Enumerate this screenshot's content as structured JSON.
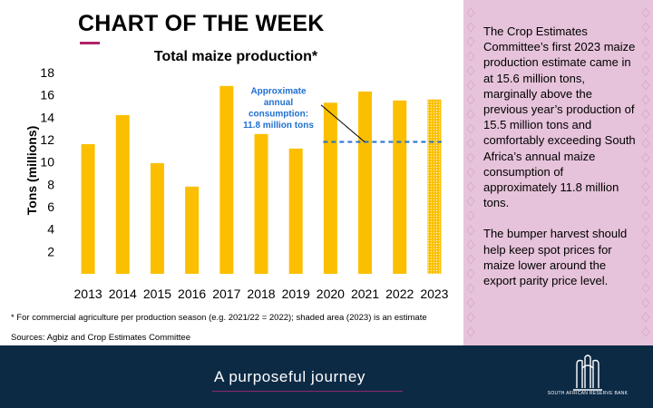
{
  "header": {
    "title": "CHART OF THE WEEK"
  },
  "chart_data": {
    "type": "bar",
    "title": "Total maize production*",
    "ylabel": "Tons (millions)",
    "xlabel": "",
    "ylim": [
      0,
      18
    ],
    "yticks": [
      2,
      4,
      6,
      8,
      10,
      12,
      14,
      16,
      18
    ],
    "categories": [
      "2013",
      "2014",
      "2015",
      "2016",
      "2017",
      "2018",
      "2019",
      "2020",
      "2021",
      "2022",
      "2023"
    ],
    "values": [
      11.6,
      14.2,
      9.9,
      7.8,
      16.8,
      12.5,
      11.2,
      15.3,
      16.3,
      15.5,
      15.6
    ],
    "estimated": [
      false,
      false,
      false,
      false,
      false,
      false,
      false,
      false,
      false,
      false,
      true
    ],
    "bar_color": "#fbbf00",
    "estimate_pattern": "dotted",
    "reference_line": {
      "value": 11.8,
      "color": "#1f6fd1",
      "style": "dashed"
    },
    "annotation": [
      "Approximate",
      "annual",
      "consumption:",
      "11.8 million tons"
    ],
    "annotation_color": "#1f6fd1",
    "grid": false,
    "legend": "none"
  },
  "footnote": "* For commercial agriculture per production season (e.g. 2021/22 = 2022); shaded area (2023) is an estimate",
  "sources": "Sources: Agbiz and Crop Estimates Committee",
  "sidebar": {
    "paragraphs": [
      "The Crop Estimates Committee’s first 2023 maize production estimate came in at 15.6 million tons, marginally above the previous year’s production of 15.5 million tons and comfortably exceeding South Africa’s annual maize consumption of approximately 11.8 million tons.",
      "The bumper harvest should help keep spot prices for maize lower around the export parity price level."
    ],
    "background": "#e6c3da"
  },
  "footer": {
    "tagline": "A purposeful journey",
    "logo_text": "SOUTH AFRICAN RESERVE BANK",
    "background": "#0d2a45"
  }
}
